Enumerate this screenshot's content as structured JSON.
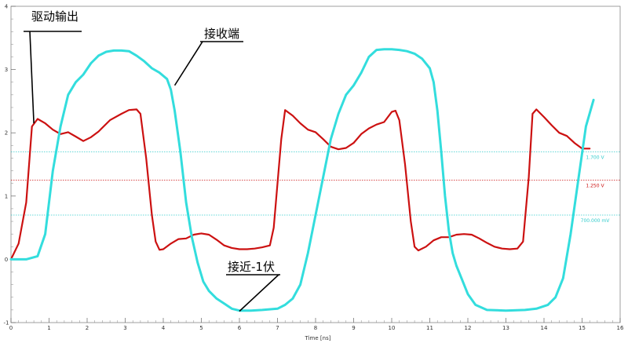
{
  "chart_data": {
    "type": "line",
    "xlabel": "Time [ns]",
    "ylabel": "",
    "xlim": [
      0,
      16
    ],
    "ylim": [
      -1,
      4
    ],
    "x_ticks": [
      0,
      1,
      2,
      3,
      4,
      5,
      6,
      7,
      8,
      9,
      10,
      11,
      12,
      13,
      14,
      15,
      16
    ],
    "y_ticks": [
      -1,
      0,
      1,
      2,
      3,
      4
    ],
    "grid": false,
    "series": [
      {
        "color": "#cc1111",
        "points": [
          [
            0,
            0
          ],
          [
            0.2,
            0.25
          ],
          [
            0.4,
            0.9
          ],
          [
            0.55,
            2.1
          ],
          [
            0.7,
            2.22
          ],
          [
            0.9,
            2.15
          ],
          [
            1.1,
            2.05
          ],
          [
            1.3,
            1.98
          ],
          [
            1.5,
            2.01
          ],
          [
            1.7,
            1.94
          ],
          [
            1.9,
            1.87
          ],
          [
            2.1,
            1.93
          ],
          [
            2.3,
            2.02
          ],
          [
            2.6,
            2.2
          ],
          [
            2.9,
            2.3
          ],
          [
            3.1,
            2.36
          ],
          [
            3.3,
            2.37
          ],
          [
            3.4,
            2.3
          ],
          [
            3.55,
            1.6
          ],
          [
            3.7,
            0.7
          ],
          [
            3.8,
            0.28
          ],
          [
            3.9,
            0.15
          ],
          [
            4.0,
            0.16
          ],
          [
            4.2,
            0.25
          ],
          [
            4.4,
            0.32
          ],
          [
            4.6,
            0.33
          ],
          [
            4.8,
            0.39
          ],
          [
            5.0,
            0.41
          ],
          [
            5.2,
            0.39
          ],
          [
            5.4,
            0.31
          ],
          [
            5.6,
            0.22
          ],
          [
            5.8,
            0.18
          ],
          [
            6.0,
            0.16
          ],
          [
            6.2,
            0.16
          ],
          [
            6.4,
            0.17
          ],
          [
            6.6,
            0.19
          ],
          [
            6.8,
            0.22
          ],
          [
            6.9,
            0.5
          ],
          [
            7.1,
            1.9
          ],
          [
            7.2,
            2.36
          ],
          [
            7.4,
            2.27
          ],
          [
            7.6,
            2.15
          ],
          [
            7.8,
            2.05
          ],
          [
            8.0,
            2.01
          ],
          [
            8.2,
            1.9
          ],
          [
            8.4,
            1.78
          ],
          [
            8.6,
            1.74
          ],
          [
            8.8,
            1.76
          ],
          [
            9.0,
            1.84
          ],
          [
            9.2,
            1.98
          ],
          [
            9.4,
            2.07
          ],
          [
            9.6,
            2.13
          ],
          [
            9.8,
            2.17
          ],
          [
            10.0,
            2.33
          ],
          [
            10.1,
            2.35
          ],
          [
            10.2,
            2.2
          ],
          [
            10.35,
            1.5
          ],
          [
            10.5,
            0.6
          ],
          [
            10.6,
            0.2
          ],
          [
            10.7,
            0.14
          ],
          [
            10.9,
            0.2
          ],
          [
            11.1,
            0.3
          ],
          [
            11.3,
            0.35
          ],
          [
            11.5,
            0.35
          ],
          [
            11.7,
            0.39
          ],
          [
            11.9,
            0.4
          ],
          [
            12.1,
            0.39
          ],
          [
            12.3,
            0.33
          ],
          [
            12.5,
            0.26
          ],
          [
            12.7,
            0.2
          ],
          [
            12.9,
            0.17
          ],
          [
            13.1,
            0.16
          ],
          [
            13.3,
            0.17
          ],
          [
            13.45,
            0.28
          ],
          [
            13.6,
            1.3
          ],
          [
            13.7,
            2.3
          ],
          [
            13.8,
            2.37
          ],
          [
            14.0,
            2.25
          ],
          [
            14.2,
            2.12
          ],
          [
            14.4,
            2.0
          ],
          [
            14.6,
            1.95
          ],
          [
            14.8,
            1.84
          ],
          [
            15.0,
            1.75
          ],
          [
            15.2,
            1.75
          ]
        ]
      },
      {
        "color": "#33dddd",
        "points": [
          [
            0,
            0
          ],
          [
            0.4,
            0
          ],
          [
            0.7,
            0.05
          ],
          [
            0.9,
            0.4
          ],
          [
            1.1,
            1.4
          ],
          [
            1.3,
            2.1
          ],
          [
            1.5,
            2.6
          ],
          [
            1.7,
            2.8
          ],
          [
            1.9,
            2.92
          ],
          [
            2.1,
            3.1
          ],
          [
            2.3,
            3.22
          ],
          [
            2.5,
            3.28
          ],
          [
            2.7,
            3.3
          ],
          [
            2.9,
            3.3
          ],
          [
            3.1,
            3.29
          ],
          [
            3.3,
            3.22
          ],
          [
            3.5,
            3.13
          ],
          [
            3.7,
            3.02
          ],
          [
            3.9,
            2.95
          ],
          [
            4.1,
            2.85
          ],
          [
            4.2,
            2.68
          ],
          [
            4.3,
            2.35
          ],
          [
            4.45,
            1.7
          ],
          [
            4.6,
            0.9
          ],
          [
            4.75,
            0.35
          ],
          [
            4.9,
            -0.05
          ],
          [
            5.05,
            -0.35
          ],
          [
            5.2,
            -0.5
          ],
          [
            5.4,
            -0.62
          ],
          [
            5.6,
            -0.7
          ],
          [
            5.8,
            -0.78
          ],
          [
            6.0,
            -0.81
          ],
          [
            6.3,
            -0.81
          ],
          [
            6.6,
            -0.8
          ],
          [
            7.0,
            -0.78
          ],
          [
            7.2,
            -0.72
          ],
          [
            7.4,
            -0.62
          ],
          [
            7.6,
            -0.4
          ],
          [
            7.8,
            0.1
          ],
          [
            8.0,
            0.7
          ],
          [
            8.2,
            1.3
          ],
          [
            8.4,
            1.9
          ],
          [
            8.6,
            2.3
          ],
          [
            8.8,
            2.6
          ],
          [
            9.0,
            2.75
          ],
          [
            9.2,
            2.95
          ],
          [
            9.4,
            3.2
          ],
          [
            9.6,
            3.31
          ],
          [
            9.8,
            3.32
          ],
          [
            10.0,
            3.32
          ],
          [
            10.2,
            3.31
          ],
          [
            10.4,
            3.29
          ],
          [
            10.6,
            3.25
          ],
          [
            10.8,
            3.17
          ],
          [
            11.0,
            3.02
          ],
          [
            11.1,
            2.8
          ],
          [
            11.2,
            2.35
          ],
          [
            11.3,
            1.7
          ],
          [
            11.4,
            1.0
          ],
          [
            11.5,
            0.45
          ],
          [
            11.6,
            0.1
          ],
          [
            11.7,
            -0.1
          ],
          [
            11.8,
            -0.25
          ],
          [
            12.0,
            -0.55
          ],
          [
            12.2,
            -0.72
          ],
          [
            12.5,
            -0.8
          ],
          [
            13.0,
            -0.81
          ],
          [
            13.5,
            -0.8
          ],
          [
            13.8,
            -0.78
          ],
          [
            14.1,
            -0.72
          ],
          [
            14.3,
            -0.6
          ],
          [
            14.5,
            -0.3
          ],
          [
            14.7,
            0.4
          ],
          [
            14.9,
            1.25
          ],
          [
            15.1,
            2.1
          ],
          [
            15.3,
            2.52
          ]
        ]
      }
    ],
    "reference_lines": [
      {
        "y": 1.7,
        "label": "1.700 V",
        "color": "#33cccc"
      },
      {
        "y": 1.25,
        "label": "1.250 V",
        "color": "#cc1111"
      },
      {
        "y": 0.7,
        "label": "700.000 mV",
        "color": "#33cccc"
      }
    ],
    "annotations": [
      {
        "text": "驱动输出",
        "target": [
          0.6,
          2.15
        ]
      },
      {
        "text": "接收端",
        "target": [
          4.3,
          2.75
        ]
      },
      {
        "text": "接近-1伏",
        "target": [
          6.0,
          -0.82
        ]
      }
    ]
  }
}
